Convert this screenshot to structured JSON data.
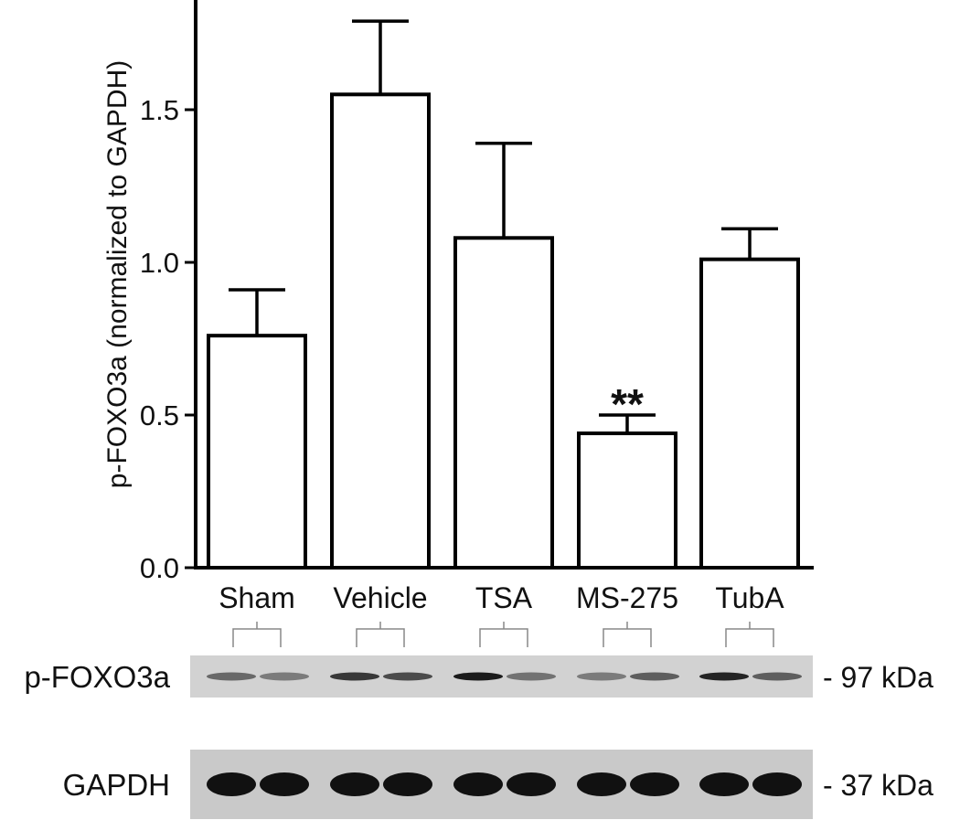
{
  "chart_data": {
    "type": "bar",
    "ylabel": "p-FOXO3a (normalized to GAPDH)",
    "ylim": [
      0,
      1.85
    ],
    "yticks": [
      "0.0",
      "0.5",
      "1.0",
      "1.5"
    ],
    "categories": [
      "Sham",
      "Vehicle",
      "TSA",
      "MS-275",
      "TubA"
    ],
    "values": [
      0.76,
      1.55,
      1.08,
      0.44,
      1.01
    ],
    "errors": [
      0.15,
      0.24,
      0.31,
      0.06,
      0.1
    ],
    "annotations": [
      {
        "category": "MS-275",
        "text": "**"
      }
    ],
    "bar_fill": "#ffffff",
    "bar_stroke": "#000000",
    "grid": false
  },
  "blots": [
    {
      "label": "p-FOXO3a",
      "size": "- 97 kDa",
      "intensities": [
        0.55,
        0.45,
        0.8,
        0.7,
        0.95,
        0.5,
        0.45,
        0.6,
        0.9,
        0.6
      ]
    },
    {
      "label": "GAPDH",
      "size": "- 37 kDa",
      "intensities": [
        1,
        1,
        1,
        1,
        1,
        1,
        1,
        1,
        1,
        1
      ]
    }
  ]
}
